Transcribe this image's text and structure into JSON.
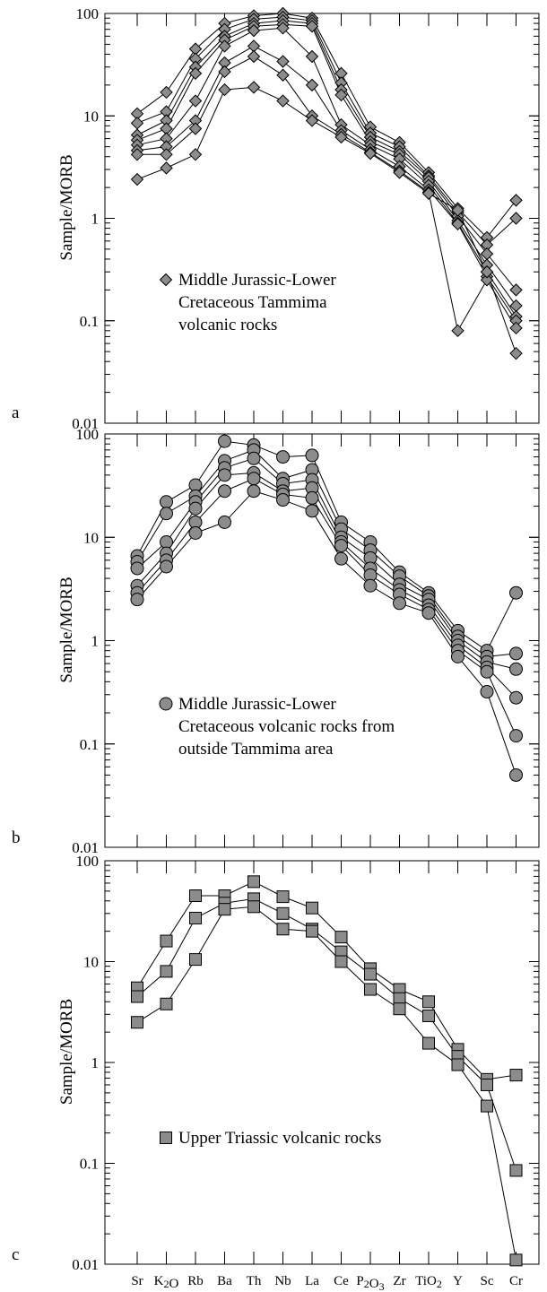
{
  "figure": {
    "ylabel": "Sample/MORB",
    "yticks": [
      "100",
      "10",
      "1",
      "0.1",
      "0.01"
    ],
    "xticks": [
      "Sr",
      "K2O",
      "Rb",
      "Ba",
      "Th",
      "Nb",
      "La",
      "Ce",
      "P2O3",
      "Zr",
      "TiO2",
      "Y",
      "Sc",
      "Cr"
    ]
  },
  "chart_data": [
    {
      "type": "line",
      "panel_label": "a",
      "marker": "diamond",
      "legend": [
        "Middle Jurassic-Lower",
        "Cretaceous Tammima",
        "volcanic rocks"
      ],
      "yscale": "log",
      "ylim": [
        0.01,
        100
      ],
      "ylabel": "Sample/MORB",
      "categories": [
        "Sr",
        "K2O",
        "Rb",
        "Ba",
        "Th",
        "Nb",
        "La",
        "Ce",
        "P2O3",
        "Zr",
        "TiO2",
        "Y",
        "Sc",
        "Cr"
      ],
      "series": [
        {
          "values": [
            10.5,
            17,
            45,
            80,
            95,
            100,
            90,
            26,
            7.8,
            5.5,
            2.8,
            1.25,
            0.65,
            1.5
          ]
        },
        {
          "values": [
            8.5,
            11,
            36,
            70,
            88,
            92,
            85,
            21,
            6.8,
            5,
            2.6,
            1.15,
            0.55,
            1.0
          ]
        },
        {
          "values": [
            6.5,
            9,
            30,
            60,
            80,
            85,
            80,
            18,
            6.2,
            4.5,
            2.5,
            1.05,
            0.45,
            0.2
          ]
        },
        {
          "values": [
            5.8,
            7.5,
            26,
            55,
            75,
            78,
            75,
            16,
            5.6,
            4.2,
            2.3,
            0.95,
            0.35,
            0.14
          ]
        },
        {
          "values": [
            5.2,
            6,
            14,
            48,
            68,
            72,
            38,
            8.2,
            5.2,
            3.8,
            2.1,
            0.9,
            0.3,
            0.11
          ]
        },
        {
          "values": [
            4.6,
            5,
            9,
            33,
            48,
            34,
            20,
            7.2,
            4.7,
            3.2,
            1.9,
            0.88,
            0.27,
            0.1
          ]
        },
        {
          "values": [
            4.2,
            4.2,
            7.5,
            27,
            38,
            25,
            10,
            6.6,
            4.4,
            2.9,
            1.8,
            0.08,
            0.25,
            0.085
          ]
        },
        {
          "values": [
            2.4,
            3.1,
            4.2,
            18,
            19,
            14,
            9,
            6.2,
            4.3,
            2.8,
            1.75,
            1.2,
            0.3,
            0.048
          ]
        }
      ]
    },
    {
      "type": "line",
      "panel_label": "b",
      "marker": "circle",
      "legend": [
        "Middle Jurassic-Lower",
        "Cretaceous volcanic rocks from",
        "outside Tammima area"
      ],
      "yscale": "log",
      "ylim": [
        0.01,
        100
      ],
      "ylabel": "Sample/MORB",
      "categories": [
        "Sr",
        "K2O",
        "Rb",
        "Ba",
        "Th",
        "Nb",
        "La",
        "Ce",
        "P2O3",
        "Zr",
        "TiO2",
        "Y",
        "Sc",
        "Cr"
      ],
      "series": [
        {
          "values": [
            6.6,
            22,
            32,
            85,
            78,
            60,
            62,
            14,
            9,
            4.6,
            2.9,
            1.25,
            0.8,
            2.9
          ]
        },
        {
          "values": [
            5.8,
            17,
            25,
            55,
            70,
            37,
            45,
            12,
            7.5,
            4.2,
            2.7,
            1.1,
            0.7,
            0.75
          ]
        },
        {
          "values": [
            5,
            9,
            22,
            47,
            58,
            33,
            36,
            10,
            6.3,
            3.5,
            2.5,
            1.0,
            0.62,
            0.53
          ]
        },
        {
          "values": [
            3.4,
            7,
            19,
            40,
            42,
            28,
            30,
            9,
            5,
            3.1,
            2.2,
            0.9,
            0.55,
            0.28
          ]
        },
        {
          "values": [
            2.9,
            6,
            14,
            28,
            37,
            26,
            24,
            8.3,
            4.3,
            2.8,
            2.0,
            0.8,
            0.5,
            0.12
          ]
        },
        {
          "values": [
            2.5,
            5.2,
            11,
            14,
            28,
            23,
            18,
            6.2,
            3.4,
            2.3,
            1.85,
            0.7,
            0.32,
            0.05
          ]
        }
      ]
    },
    {
      "type": "line",
      "panel_label": "c",
      "marker": "square",
      "legend": [
        "Upper Triassic volcanic rocks"
      ],
      "yscale": "log",
      "ylim": [
        0.01,
        100
      ],
      "ylabel": "Sample/MORB",
      "categories": [
        "Sr",
        "K2O",
        "Rb",
        "Ba",
        "Th",
        "Nb",
        "La",
        "Ce",
        "P2O3",
        "Zr",
        "TiO2",
        "Y",
        "Sc",
        "Cr"
      ],
      "series": [
        {
          "values": [
            5.5,
            16,
            45,
            45,
            62,
            44,
            34,
            17.5,
            8.5,
            5.3,
            4,
            1.35,
            0.68,
            0.75
          ]
        },
        {
          "values": [
            4.5,
            8,
            27,
            38,
            42,
            30,
            21,
            12.5,
            7.5,
            4.3,
            2.9,
            1.15,
            0.6,
            0.085
          ]
        },
        {
          "values": [
            2.5,
            3.8,
            10.5,
            33,
            35,
            21,
            20,
            10,
            5.3,
            3.4,
            1.55,
            0.95,
            0.37,
            0.011
          ]
        }
      ]
    }
  ],
  "colors": {
    "marker_fill": "#8c8c8c",
    "stroke": "#000000",
    "background": "#ffffff"
  }
}
